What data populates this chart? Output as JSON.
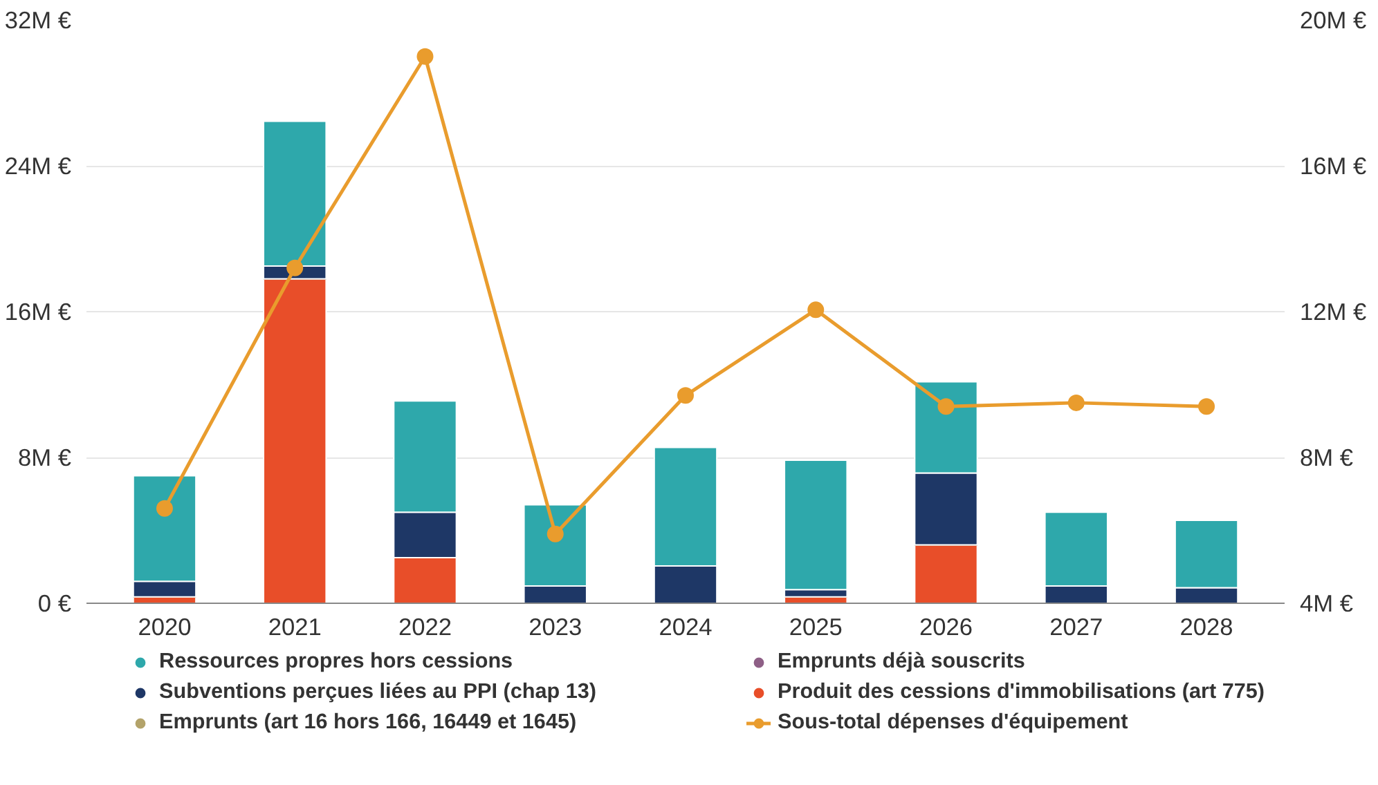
{
  "chart_data": {
    "type": "bar",
    "stacked": true,
    "categories": [
      "2020",
      "2021",
      "2022",
      "2023",
      "2024",
      "2025",
      "2026",
      "2027",
      "2028"
    ],
    "series": [
      {
        "name": "Produit des cessions d'immobilisations (art 775)",
        "color": "#e84e29",
        "values": [
          0.35,
          17.8,
          2.5,
          0,
          0,
          0.35,
          3.2,
          0,
          0
        ]
      },
      {
        "name": "Emprunts déjà souscrits",
        "color": "#8e5f86",
        "values": [
          0,
          0,
          0,
          0,
          0,
          0,
          0,
          0,
          0
        ]
      },
      {
        "name": "Emprunts (art 16 hors 166, 16449 et 1645)",
        "color": "#b3a36a",
        "values": [
          0,
          0,
          0,
          0,
          0,
          0,
          0,
          0,
          0
        ]
      },
      {
        "name": "Subventions perçues liées au PPI (chap 13)",
        "color": "#1e3766",
        "values": [
          0.85,
          0.7,
          2.5,
          0.95,
          2.05,
          0.4,
          3.95,
          0.95,
          0.85
        ]
      },
      {
        "name": "Ressources propres hors cessions",
        "color": "#2ea8ab",
        "values": [
          5.8,
          7.95,
          6.1,
          4.45,
          6.5,
          7.1,
          5.0,
          4.05,
          3.7
        ]
      },
      {
        "name": "Sous-total dépenses d'équipement",
        "color": "#e99c2d",
        "type": "line",
        "axis": "y2",
        "values": [
          6.6,
          13.2,
          19.0,
          5.9,
          9.7,
          12.05,
          9.4,
          9.5,
          9.4
        ]
      }
    ],
    "ylim": [
      0,
      32
    ],
    "yticks": [
      {
        "value": 0,
        "label": "0 €"
      },
      {
        "value": 8,
        "label": "8M €"
      },
      {
        "value": 16,
        "label": "16M €"
      },
      {
        "value": 24,
        "label": "24M €"
      },
      {
        "value": 32,
        "label": "32M €"
      }
    ],
    "y2lim": [
      4,
      20
    ],
    "y2ticks": [
      {
        "value": 4,
        "label": "4M €"
      },
      {
        "value": 8,
        "label": "8M €"
      },
      {
        "value": 12,
        "label": "12M €"
      },
      {
        "value": 16,
        "label": "16M €"
      },
      {
        "value": 20,
        "label": "20M €"
      }
    ],
    "grid": "y",
    "legend": "bottom",
    "marker": "circle",
    "line_style": "solid"
  }
}
